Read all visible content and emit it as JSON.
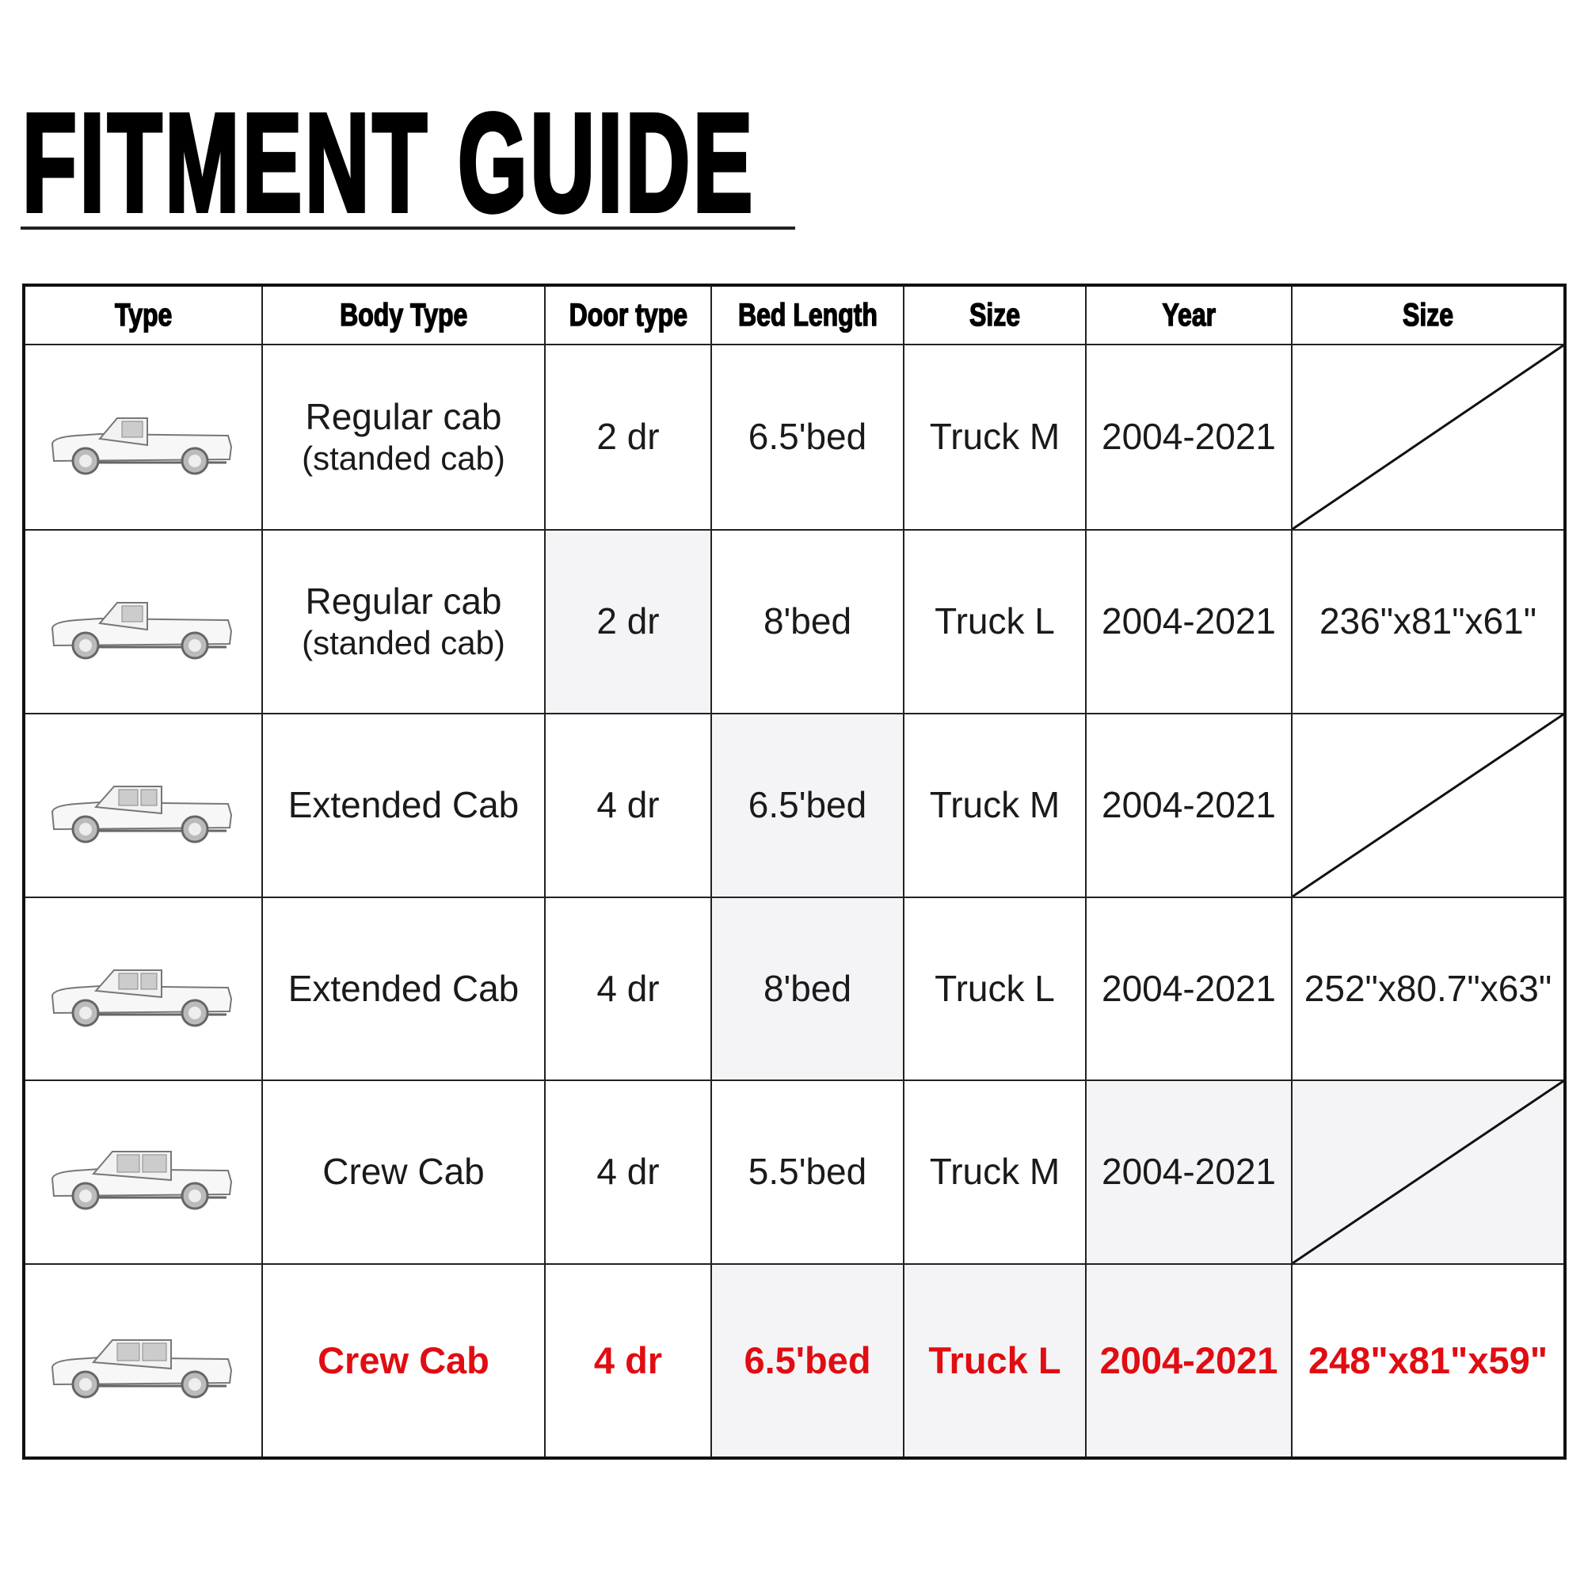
{
  "title": "FITMENT GUIDE",
  "table": {
    "headers": [
      "Type",
      "Body Type",
      "Door type",
      "Bed Length",
      "Size",
      "Year",
      "Size"
    ],
    "rows": [
      {
        "icon": "regular-cab-pickup-icon",
        "body_type": "Regular cab",
        "body_type_note": "(standed cab)",
        "door_type": "2 dr",
        "bed_length": "6.5'bed",
        "size": "Truck M",
        "year": "2004-2021",
        "dimensions": "",
        "highlight": false
      },
      {
        "icon": "regular-cab-pickup-icon",
        "body_type": "Regular cab",
        "body_type_note": "(standed cab)",
        "door_type": "2 dr",
        "bed_length": "8'bed",
        "size": "Truck L",
        "year": "2004-2021",
        "dimensions": "236\"x81\"x61\"",
        "highlight": false
      },
      {
        "icon": "extended-cab-pickup-icon",
        "body_type": "Extended Cab",
        "body_type_note": "",
        "door_type": "4 dr",
        "bed_length": "6.5'bed",
        "size": "Truck M",
        "year": "2004-2021",
        "dimensions": "",
        "highlight": false
      },
      {
        "icon": "extended-cab-pickup-icon",
        "body_type": "Extended Cab",
        "body_type_note": "",
        "door_type": "4 dr",
        "bed_length": "8'bed",
        "size": "Truck L",
        "year": "2004-2021",
        "dimensions": "252\"x80.7\"x63\"",
        "highlight": false
      },
      {
        "icon": "crew-cab-pickup-icon",
        "body_type": "Crew Cab",
        "body_type_note": "",
        "door_type": "4 dr",
        "bed_length": "5.5'bed",
        "size": "Truck M",
        "year": "2004-2021",
        "dimensions": "",
        "highlight": false
      },
      {
        "icon": "crew-cab-pickup-icon",
        "body_type": "Crew Cab",
        "body_type_note": "",
        "door_type": "4 dr",
        "bed_length": "6.5'bed",
        "size": "Truck L",
        "year": "2004-2021",
        "dimensions": "248\"x81\"x59\"",
        "highlight": true
      }
    ]
  },
  "colors": {
    "highlight": "#e00d12",
    "text": "#1a1a1a",
    "border": "#111111"
  }
}
